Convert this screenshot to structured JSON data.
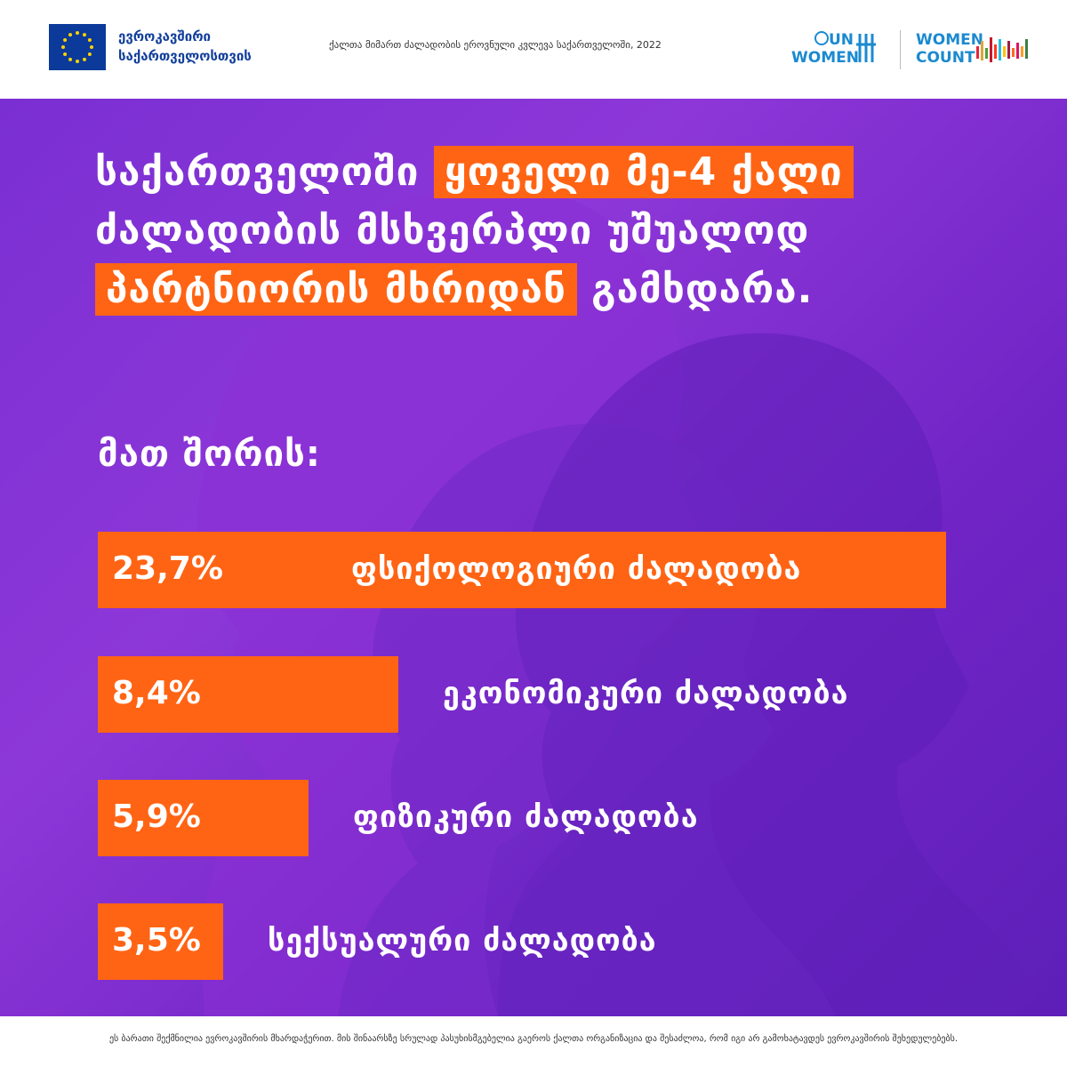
{
  "header": {
    "eu_logo_text_line1": "ევროკავშირი",
    "eu_logo_text_line2": "საქართველოსთვის",
    "title": "ქალთა მიმართ ძალადობის ეროვნული კვლევა საქართველოში, 2022",
    "un_women_line1": "UN",
    "un_women_line2": "WOMEN",
    "women_count_line1": "WOMEN",
    "women_count_line2": "COUNT"
  },
  "headline": {
    "part1": "საქართველოში ",
    "highlight1": "ყოველი მე-4 ქალი",
    "part2": " ძალადობის მსხვერპლი უშუალოდ ",
    "highlight2": "პარტნიორის მხრიდან",
    "part3": " გამხდარა."
  },
  "subheading": "მათ შორის:",
  "chart_data": {
    "type": "bar",
    "orientation": "horizontal",
    "categories": [
      "ფსიქოლოგიური ძალადობა",
      "ეკონომიკური ძალადობა",
      "ფიზიკური ძალადობა",
      "სექსუალური ძალადობა"
    ],
    "values": [
      23.7,
      8.4,
      5.9,
      3.5
    ],
    "value_labels": [
      "23,7%",
      "8,4%",
      "5,9%",
      "3,5%"
    ],
    "unit": "%",
    "bar_color": "#ff6414"
  },
  "footer": {
    "disclaimer": "ეს ბარათი შექმნილია ევროკავშირის მხარდაჭერით. მის შინაარსზე სრულად პასუხისმგებელია გაეროს ქალთა ორგანიზაცია და შესაძლოა, რომ იგი არ გამოხატავდეს ევროკავშირის შეხედულებებს."
  },
  "colors": {
    "accent": "#ff6414",
    "background_purple": "#7a2fd3",
    "eu_blue": "#123f9b",
    "un_blue": "#1b8ad0"
  }
}
